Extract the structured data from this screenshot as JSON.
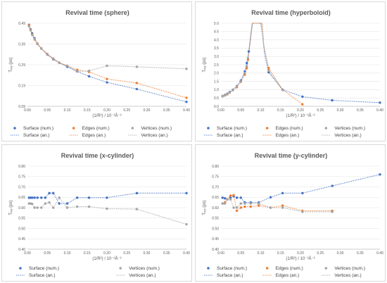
{
  "chart_data": [
    {
      "type": "line",
      "title": "Revival time (sphere)",
      "xlabel": "(1/R²) / 10⁻³Å⁻²",
      "ylabel": "Tᵣₑᵥ (ps)",
      "xlim": [
        0,
        0.4
      ],
      "ylim": [
        0.09,
        0.5
      ],
      "xticks": [
        "0.00",
        "0.05",
        "0.10",
        "0.15",
        "0.20",
        "0.25",
        "0.30",
        "0.35",
        "0.40"
      ],
      "yticks": [
        "0.09",
        "0.19",
        "0.29",
        "0.39",
        "0.49"
      ],
      "grid": "horizontal",
      "legend": "bottom",
      "series": [
        {
          "name": "Surface (num.)",
          "kind": "marker",
          "color": "#4472c4",
          "x": [
            0.004,
            0.008,
            0.012,
            0.018,
            0.025,
            0.035,
            0.05,
            0.065,
            0.08,
            0.1,
            0.125,
            0.155,
            0.2,
            0.275,
            0.4
          ],
          "y": [
            0.492,
            0.47,
            0.45,
            0.425,
            0.398,
            0.375,
            0.345,
            0.322,
            0.305,
            0.285,
            0.262,
            0.238,
            0.208,
            0.175,
            0.112
          ]
        },
        {
          "name": "Edges (num.)",
          "kind": "marker",
          "color": "#ed7d31",
          "x": [
            0.004,
            0.008,
            0.012,
            0.018,
            0.025,
            0.035,
            0.05,
            0.065,
            0.08,
            0.1,
            0.125,
            0.155,
            0.2,
            0.275,
            0.4
          ],
          "y": [
            0.49,
            0.468,
            0.445,
            0.42,
            0.4,
            0.376,
            0.348,
            0.325,
            0.305,
            0.29,
            0.27,
            0.26,
            0.225,
            0.205,
            0.132
          ]
        },
        {
          "name": "Vertices (num.)",
          "kind": "marker",
          "color": "#a5a5a5",
          "x": [
            0.004,
            0.008,
            0.012,
            0.018,
            0.025,
            0.035,
            0.05,
            0.065,
            0.08,
            0.1,
            0.125,
            0.155,
            0.2,
            0.275,
            0.4
          ],
          "y": [
            0.485,
            0.465,
            0.442,
            0.422,
            0.398,
            0.375,
            0.346,
            0.326,
            0.305,
            0.29,
            0.262,
            0.265,
            0.29,
            0.285,
            0.275
          ]
        },
        {
          "name": "Surface (an.)",
          "kind": "dotted",
          "color": "#4472c4",
          "x": [
            0.004,
            0.008,
            0.012,
            0.018,
            0.025,
            0.035,
            0.05,
            0.065,
            0.08,
            0.1,
            0.125,
            0.155,
            0.2,
            0.275,
            0.4
          ],
          "y": [
            0.492,
            0.47,
            0.45,
            0.425,
            0.398,
            0.375,
            0.345,
            0.322,
            0.305,
            0.285,
            0.262,
            0.238,
            0.208,
            0.175,
            0.112
          ]
        },
        {
          "name": "Edges (an.)",
          "kind": "dotted",
          "color": "#ed7d31",
          "x": [
            0.004,
            0.008,
            0.012,
            0.018,
            0.025,
            0.035,
            0.05,
            0.065,
            0.08,
            0.1,
            0.125,
            0.155,
            0.2,
            0.275,
            0.4
          ],
          "y": [
            0.49,
            0.468,
            0.445,
            0.42,
            0.4,
            0.376,
            0.348,
            0.325,
            0.305,
            0.29,
            0.27,
            0.26,
            0.225,
            0.205,
            0.132
          ]
        },
        {
          "name": "Vertices (an.)",
          "kind": "dotted",
          "color": "#a5a5a5",
          "x": [
            0.004,
            0.008,
            0.012,
            0.018,
            0.025,
            0.035,
            0.05,
            0.065,
            0.08,
            0.1,
            0.125,
            0.155,
            0.2,
            0.275,
            0.4
          ],
          "y": [
            0.485,
            0.465,
            0.442,
            0.422,
            0.398,
            0.375,
            0.346,
            0.326,
            0.305,
            0.29,
            0.262,
            0.265,
            0.29,
            0.285,
            0.275
          ]
        }
      ]
    },
    {
      "type": "line",
      "title": "Revival time (hyperboloid)",
      "xlabel": "(1/R²) / 10⁻³Å⁻²",
      "ylabel": "Tᵣₑᵥ (ps)",
      "xlim": [
        0,
        0.4
      ],
      "ylim": [
        0,
        5
      ],
      "xticks": [
        "0.00",
        "0.05",
        "0.10",
        "0.15",
        "0.20",
        "0.25",
        "0.30",
        "0.35",
        "0.40"
      ],
      "yticks": [
        "0.0",
        "0.5",
        "1.0",
        "1.5",
        "2.0",
        "2.5",
        "3.0",
        "3.5",
        "4.0",
        "4.5",
        "5.0"
      ],
      "grid": "horizontal",
      "legend": "bottom",
      "series": [
        {
          "name": "Surface (num.)",
          "kind": "marker",
          "color": "#4472c4",
          "x": [
            0.004,
            0.01,
            0.016,
            0.022,
            0.03,
            0.04,
            0.05,
            0.06,
            0.065,
            0.07,
            0.12,
            0.155,
            0.205,
            0.28,
            0.4
          ],
          "y": [
            0.62,
            0.68,
            0.76,
            0.86,
            1.0,
            1.22,
            1.55,
            2.1,
            2.6,
            3.3,
            2.05,
            1.0,
            0.58,
            0.36,
            0.22
          ]
        },
        {
          "name": "Edges (num.)",
          "kind": "marker",
          "color": "#ed7d31",
          "x": [
            0.004,
            0.01,
            0.016,
            0.022,
            0.03,
            0.04,
            0.05,
            0.06,
            0.065,
            0.068,
            0.12,
            0.155,
            0.205
          ],
          "y": [
            0.6,
            0.65,
            0.72,
            0.82,
            0.97,
            1.15,
            1.48,
            1.9,
            2.3,
            2.8,
            2.3,
            1.0,
            0.12
          ]
        },
        {
          "name": "Vertices (num.)",
          "kind": "marker",
          "color": "#a5a5a5",
          "x": [
            0.004,
            0.01,
            0.016,
            0.022,
            0.03,
            0.04,
            0.05,
            0.06,
            0.065,
            0.068,
            0.12,
            0.155
          ],
          "y": [
            0.61,
            0.66,
            0.74,
            0.84,
            0.98,
            1.2,
            1.5,
            2.0,
            2.4,
            2.9,
            2.15,
            0.98
          ]
        },
        {
          "name": "Surface (an.)",
          "kind": "dotted",
          "color": "#4472c4",
          "x": [
            0.004,
            0.01,
            0.016,
            0.022,
            0.03,
            0.04,
            0.05,
            0.06,
            0.065,
            0.07,
            0.075,
            0.08,
            0.1,
            0.105,
            0.11,
            0.12,
            0.155,
            0.205,
            0.28,
            0.4
          ],
          "y": [
            0.62,
            0.68,
            0.76,
            0.86,
            1.0,
            1.22,
            1.55,
            2.1,
            2.6,
            3.3,
            4.3,
            5.0,
            5.0,
            4.2,
            3.1,
            2.05,
            1.0,
            0.58,
            0.36,
            0.22
          ]
        },
        {
          "name": "Edges (an.)",
          "kind": "dotted",
          "color": "#ed7d31",
          "x": [
            0.004,
            0.01,
            0.016,
            0.022,
            0.03,
            0.04,
            0.05,
            0.06,
            0.065,
            0.068,
            0.074,
            0.078,
            0.104,
            0.108,
            0.12,
            0.155,
            0.205
          ],
          "y": [
            0.6,
            0.65,
            0.72,
            0.82,
            0.97,
            1.15,
            1.48,
            1.9,
            2.3,
            2.8,
            4.0,
            5.0,
            5.0,
            3.6,
            2.3,
            1.0,
            0.12
          ]
        },
        {
          "name": "Vertices (an.)",
          "kind": "dotted",
          "color": "#a5a5a5",
          "x": [
            0.004,
            0.01,
            0.016,
            0.022,
            0.03,
            0.04,
            0.05,
            0.06,
            0.065,
            0.068,
            0.075,
            0.079,
            0.102,
            0.107,
            0.12,
            0.155
          ],
          "y": [
            0.61,
            0.66,
            0.74,
            0.84,
            0.98,
            1.2,
            1.5,
            2.0,
            2.4,
            2.9,
            4.1,
            5.0,
            5.0,
            3.8,
            2.15,
            0.98
          ]
        }
      ]
    },
    {
      "type": "line",
      "title": "Revival time (x-cylinder)",
      "xlabel": "(1/R²) / 10⁻³Å⁻²",
      "ylabel": "Tᵣₑᵥ (ps)",
      "xlim": [
        0,
        0.4
      ],
      "ylim": [
        0.4,
        0.8
      ],
      "xticks": [
        "0.00",
        "0.05",
        "0.10",
        "0.15",
        "0.20",
        "0.25",
        "0.30",
        "0.35",
        "0.40"
      ],
      "yticks": [
        "0.40",
        "0.45",
        "0.50",
        "0.55",
        "0.60",
        "0.65",
        "0.70",
        "0.75",
        "0.80"
      ],
      "grid": "horizontal",
      "legend": "bottom",
      "series": [
        {
          "name": "Surface (num.)",
          "kind": "marker",
          "color": "#4472c4",
          "x": [
            0.004,
            0.008,
            0.012,
            0.018,
            0.025,
            0.035,
            0.045,
            0.055,
            0.065,
            0.08,
            0.1,
            0.125,
            0.155,
            0.2,
            0.275,
            0.4
          ],
          "y": [
            0.648,
            0.648,
            0.648,
            0.648,
            0.648,
            0.648,
            0.648,
            0.67,
            0.67,
            0.62,
            0.62,
            0.648,
            0.648,
            0.648,
            0.67,
            0.67
          ]
        },
        {
          "name": "Vertices (num.)",
          "kind": "marker",
          "color": "#a5a5a5",
          "x": [
            0.004,
            0.008,
            0.012,
            0.018,
            0.025,
            0.035,
            0.045,
            0.055,
            0.065,
            0.08,
            0.1,
            0.125,
            0.155,
            0.2,
            0.275,
            0.4
          ],
          "y": [
            0.62,
            0.62,
            0.618,
            0.6,
            0.6,
            0.6,
            0.62,
            0.625,
            0.6,
            0.648,
            0.6,
            0.605,
            0.605,
            0.595,
            0.593,
            0.52
          ]
        },
        {
          "name": "Surface (an.)",
          "kind": "dotted",
          "color": "#4472c4",
          "x": [
            0.004,
            0.008,
            0.012,
            0.018,
            0.025,
            0.035,
            0.045,
            0.055,
            0.065,
            0.08,
            0.1,
            0.125,
            0.155,
            0.2,
            0.275,
            0.4
          ],
          "y": [
            0.648,
            0.648,
            0.648,
            0.648,
            0.648,
            0.648,
            0.648,
            0.67,
            0.67,
            0.62,
            0.62,
            0.648,
            0.648,
            0.648,
            0.67,
            0.67
          ]
        },
        {
          "name": "Vertices (an.)",
          "kind": "dotted",
          "color": "#a5a5a5",
          "x": [
            0.004,
            0.008,
            0.012,
            0.018,
            0.025,
            0.035,
            0.045,
            0.055,
            0.065,
            0.08,
            0.1,
            0.125,
            0.155,
            0.2,
            0.275,
            0.4
          ],
          "y": [
            0.62,
            0.62,
            0.618,
            0.6,
            0.6,
            0.6,
            0.62,
            0.625,
            0.6,
            0.648,
            0.6,
            0.605,
            0.605,
            0.595,
            0.593,
            0.52
          ]
        }
      ]
    },
    {
      "type": "line",
      "title": "Revival time (y-cylinder)",
      "xlabel": "(1/R²) / 10⁻³Å⁻²",
      "ylabel": "Tᵣₑᵥ (ps)",
      "xlim": [
        0,
        0.4
      ],
      "ylim": [
        0.4,
        0.8
      ],
      "xticks": [
        "0.00",
        "0.05",
        "0.10",
        "0.15",
        "0.20",
        "0.25",
        "0.30",
        "0.35",
        "0.40"
      ],
      "yticks": [
        "0.40",
        "0.45",
        "0.50",
        "0.55",
        "0.60",
        "0.65",
        "0.70",
        "0.75",
        "0.80"
      ],
      "grid": "horizontal",
      "legend": "bottom",
      "series": [
        {
          "name": "Surface (num.)",
          "kind": "marker",
          "color": "#4472c4",
          "x": [
            0.004,
            0.01,
            0.016,
            0.024,
            0.032,
            0.04,
            0.05,
            0.06,
            0.075,
            0.095,
            0.125,
            0.155,
            0.205,
            0.28,
            0.4
          ],
          "y": [
            0.648,
            0.645,
            0.64,
            0.648,
            0.655,
            0.648,
            0.648,
            0.625,
            0.625,
            0.625,
            0.65,
            0.67,
            0.67,
            0.705,
            0.76
          ]
        },
        {
          "name": "Edges (num.)",
          "kind": "marker",
          "color": "#ed7d31",
          "x": [
            0.004,
            0.01,
            0.016,
            0.024,
            0.032,
            0.04,
            0.05,
            0.06,
            0.075,
            0.095,
            0.125,
            0.155,
            0.205,
            0.28
          ],
          "y": [
            0.62,
            0.625,
            0.64,
            0.658,
            0.66,
            0.585,
            0.6,
            0.605,
            0.605,
            0.61,
            0.6,
            0.61,
            0.585,
            0.585
          ]
        },
        {
          "name": "Vertices (num.)",
          "kind": "marker",
          "color": "#a5a5a5",
          "x": [
            0.004,
            0.01,
            0.016,
            0.024,
            0.032,
            0.04,
            0.05,
            0.06,
            0.075,
            0.095,
            0.125,
            0.155,
            0.205,
            0.28
          ],
          "y": [
            0.62,
            0.62,
            0.64,
            0.64,
            0.6,
            0.6,
            0.62,
            0.62,
            0.62,
            0.62,
            0.6,
            0.6,
            0.58,
            0.58
          ]
        },
        {
          "name": "Surface (an.)",
          "kind": "dotted",
          "color": "#4472c4",
          "x": [
            0.004,
            0.01,
            0.016,
            0.024,
            0.032,
            0.04,
            0.05,
            0.06,
            0.075,
            0.095,
            0.125,
            0.155,
            0.205,
            0.28,
            0.4
          ],
          "y": [
            0.648,
            0.645,
            0.64,
            0.648,
            0.655,
            0.648,
            0.648,
            0.625,
            0.625,
            0.625,
            0.65,
            0.67,
            0.67,
            0.705,
            0.76
          ]
        },
        {
          "name": "Edges (an.)",
          "kind": "dotted",
          "color": "#ed7d31",
          "x": [
            0.004,
            0.01,
            0.016,
            0.024,
            0.032,
            0.04,
            0.05,
            0.06,
            0.075,
            0.095,
            0.125,
            0.155,
            0.205,
            0.28
          ],
          "y": [
            0.62,
            0.625,
            0.64,
            0.658,
            0.66,
            0.585,
            0.6,
            0.605,
            0.605,
            0.61,
            0.6,
            0.61,
            0.585,
            0.585
          ]
        },
        {
          "name": "Vertices (an.)",
          "kind": "dotted",
          "color": "#a5a5a5",
          "x": [
            0.004,
            0.01,
            0.016,
            0.024,
            0.032,
            0.04,
            0.05,
            0.06,
            0.075,
            0.095,
            0.125,
            0.155,
            0.205,
            0.28
          ],
          "y": [
            0.62,
            0.62,
            0.64,
            0.64,
            0.6,
            0.6,
            0.62,
            0.62,
            0.62,
            0.62,
            0.6,
            0.6,
            0.58,
            0.58
          ]
        }
      ]
    }
  ]
}
